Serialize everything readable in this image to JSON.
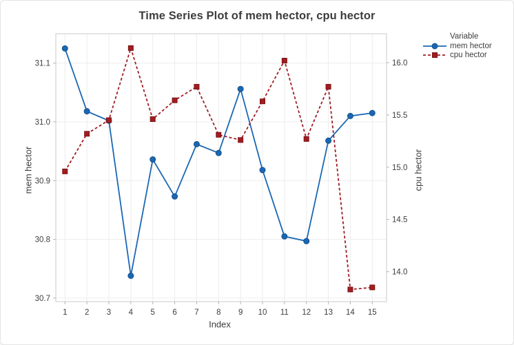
{
  "window": {
    "background": "#ffffff"
  },
  "chart": {
    "title": "Time Series Plot of mem hector, cpu hector",
    "xlabel": "Index",
    "ylabel_left": "mem hector",
    "ylabel_right": "cpu hector",
    "legend": {
      "title": "Variable"
    }
  },
  "chart_data": {
    "type": "line",
    "title": "Time Series Plot of mem hector, cpu hector",
    "xlabel": "Index",
    "x": [
      1,
      2,
      3,
      4,
      5,
      6,
      7,
      8,
      9,
      10,
      11,
      12,
      13,
      14,
      15
    ],
    "series": [
      {
        "id": "mem-hector",
        "name": "mem hector",
        "axis": "left",
        "color": "#1b67b2",
        "edge": "#10508f",
        "marker": "circle",
        "line": "solid",
        "values": [
          31.125,
          31.018,
          31.002,
          30.738,
          30.936,
          30.873,
          30.962,
          30.947,
          31.056,
          30.918,
          30.805,
          30.797,
          30.968,
          31.01,
          31.015
        ]
      },
      {
        "id": "cpu-hector",
        "name": "cpu hector",
        "axis": "right",
        "color": "#a11d22",
        "edge": "#7c1316",
        "marker": "square",
        "line": "dashed",
        "values": [
          14.96,
          15.32,
          15.45,
          16.14,
          15.46,
          15.64,
          15.77,
          15.31,
          15.26,
          15.63,
          16.02,
          15.27,
          15.77,
          13.83,
          13.85
        ]
      }
    ],
    "axes": {
      "x": {
        "label": "Index",
        "ticks": [
          1,
          2,
          3,
          4,
          5,
          6,
          7,
          8,
          9,
          10,
          11,
          12,
          13,
          14,
          15
        ],
        "tick_labels": [
          "1",
          "2",
          "3",
          "4",
          "5",
          "6",
          "7",
          "8",
          "9",
          "10",
          "11",
          "12",
          "13",
          "14",
          "15"
        ],
        "range": [
          0.583,
          15.65
        ]
      },
      "left": {
        "label": "mem hector",
        "ticks": [
          30.7,
          30.8,
          30.9,
          31.0,
          31.1
        ],
        "tick_labels": [
          "30.7",
          "30.8",
          "30.9",
          "31.0",
          "31.1"
        ],
        "range": [
          30.694,
          31.15
        ]
      },
      "right": {
        "label": "cpu hector",
        "ticks": [
          14.0,
          14.5,
          15.0,
          15.5,
          16.0
        ],
        "tick_labels": [
          "14.0",
          "14.5",
          "15.0",
          "15.5",
          "16.0"
        ],
        "range": [
          13.714,
          16.277
        ]
      }
    },
    "grid": {
      "horizontal": true,
      "vertical": true
    },
    "legend_position": "right",
    "legend_title": "Variable"
  }
}
